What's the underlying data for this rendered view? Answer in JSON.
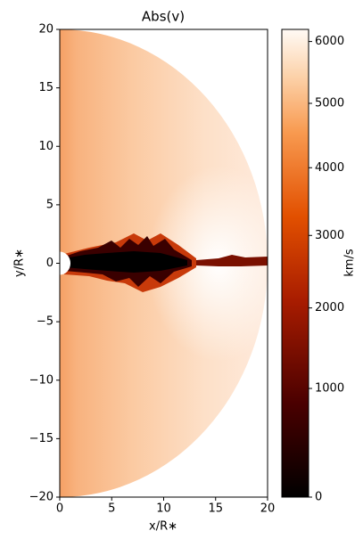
{
  "chart_data": {
    "type": "heatmap",
    "title": "Abs(v)",
    "xlabel": "x/R∗",
    "ylabel": "y/R∗",
    "xlim": [
      0,
      20
    ],
    "ylim": [
      -20,
      20
    ],
    "xticks": [
      0,
      5,
      10,
      15,
      20
    ],
    "yticks": [
      {
        "value": -20,
        "label": "−20"
      },
      {
        "value": -15,
        "label": "−15"
      },
      {
        "value": -10,
        "label": "−10"
      },
      {
        "value": -5,
        "label": "−5"
      },
      0,
      5,
      10,
      15,
      20
    ],
    "colorbar_label": "km/s",
    "clim": [
      0,
      6200
    ],
    "colorbar_gamma": 0.8,
    "colorbar_ticks": [
      0,
      1000,
      2000,
      3000,
      4000,
      5000,
      6000
    ]
  }
}
